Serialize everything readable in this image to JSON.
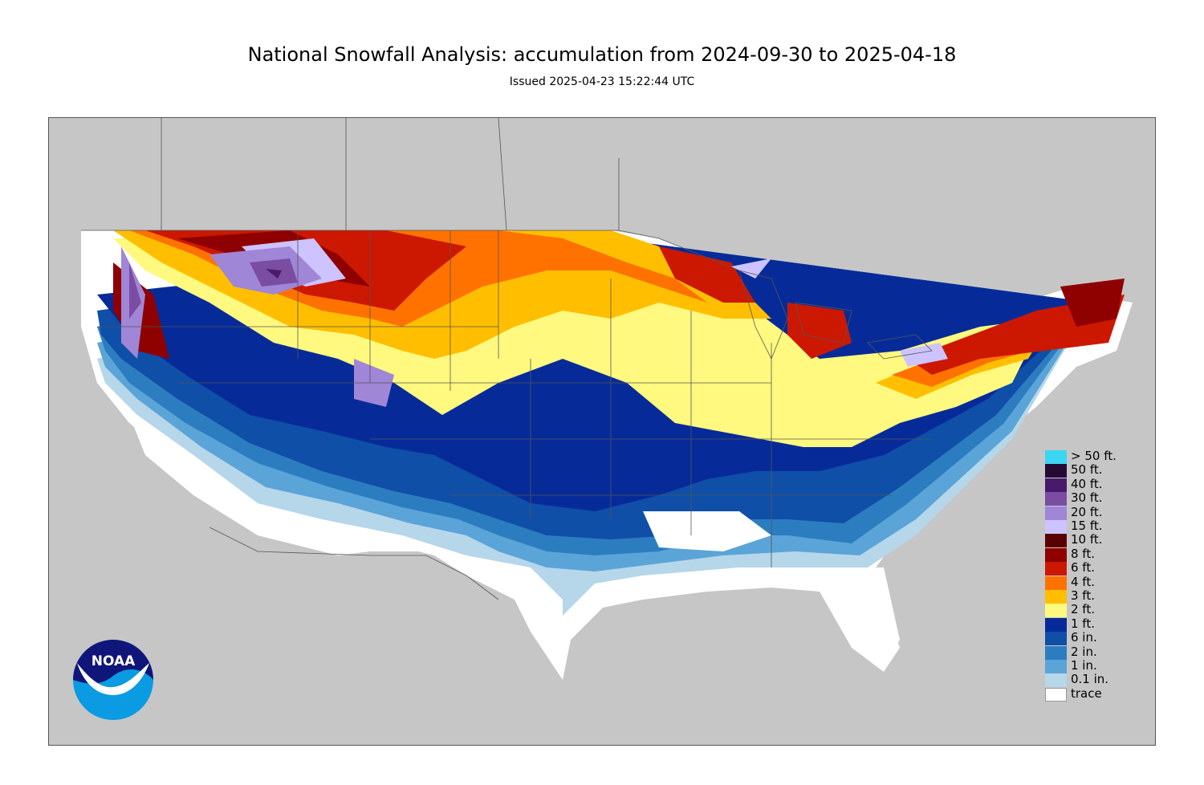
{
  "title": "National Snowfall Analysis: accumulation from 2024-09-30 to 2025-04-18",
  "subtitle": "Issued 2025-04-23 15:22:44 UTC",
  "logo": {
    "text": "NOAA"
  },
  "colors": {
    "background_land": "#c6c6c6",
    "border_lines": "#555555"
  },
  "legend": [
    {
      "label": "> 50 ft.",
      "color": "#3ad6f2"
    },
    {
      "label": "50 ft.",
      "color": "#250a33"
    },
    {
      "label": "40 ft.",
      "color": "#4a1a6a"
    },
    {
      "label": "30 ft.",
      "color": "#7a4da3"
    },
    {
      "label": "20 ft.",
      "color": "#9f86d6"
    },
    {
      "label": "15 ft.",
      "color": "#cdc3ff"
    },
    {
      "label": "10 ft.",
      "color": "#5b0000"
    },
    {
      "label": "8 ft.",
      "color": "#8f0000"
    },
    {
      "label": "6 ft.",
      "color": "#cc1800"
    },
    {
      "label": "4 ft.",
      "color": "#ff7200"
    },
    {
      "label": "3 ft.",
      "color": "#ffbf00"
    },
    {
      "label": "2 ft.",
      "color": "#fff97f"
    },
    {
      "label": "1 ft.",
      "color": "#062b99"
    },
    {
      "label": "6 in.",
      "color": "#0f4fa8"
    },
    {
      "label": "2 in.",
      "color": "#2c7dc0"
    },
    {
      "label": "1 in.",
      "color": "#5ba4d8"
    },
    {
      "label": "0.1 in.",
      "color": "#b6d6ea"
    },
    {
      "label": "trace",
      "color": "#ffffff"
    }
  ]
}
